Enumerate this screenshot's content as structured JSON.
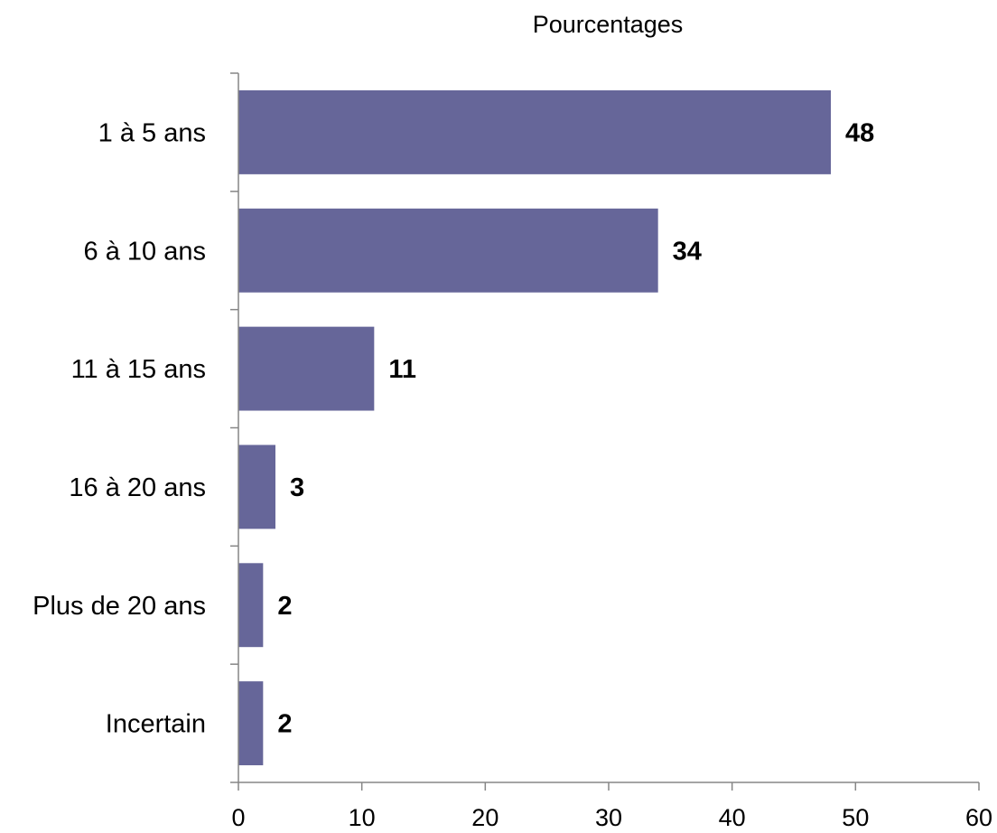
{
  "chart_data": {
    "type": "bar",
    "orientation": "horizontal",
    "title": "Pourcentages",
    "categories": [
      "1 à 5 ans",
      "6 à 10 ans",
      "11 à 15 ans",
      "16 à 20 ans",
      "Plus de 20 ans",
      "Incertain"
    ],
    "values": [
      48,
      34,
      11,
      3,
      2,
      2
    ],
    "data_labels": [
      "48",
      "34",
      "11",
      "3",
      "2",
      "2"
    ],
    "xlim": [
      0,
      60
    ],
    "x_ticks": [
      0,
      10,
      20,
      30,
      40,
      50,
      60
    ],
    "grid": false,
    "legend": "none",
    "bar_color": "#666699",
    "axis_color": "#868686"
  }
}
